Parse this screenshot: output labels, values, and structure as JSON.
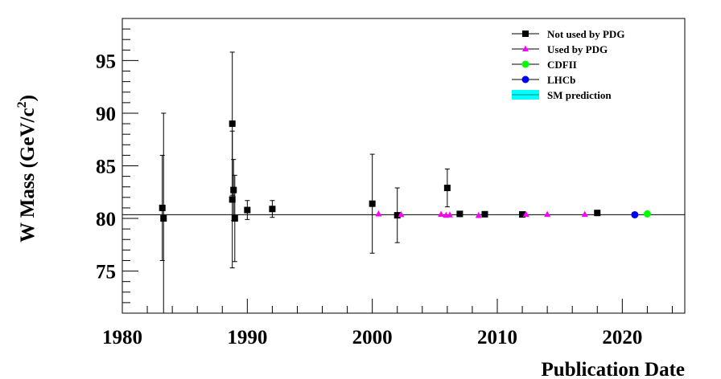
{
  "chart_data": {
    "type": "scatter",
    "title": "",
    "xlabel": "Publication Date",
    "ylabel": "W Mass (GeV/c",
    "ylabel_sup": "2",
    "ylabel_close": ")",
    "xlim": [
      1980,
      2025
    ],
    "ylim": [
      71,
      99
    ],
    "x_ticks": [
      1980,
      1990,
      2000,
      2010,
      2020
    ],
    "x_tick_labels": [
      "1980",
      "1990",
      "2000",
      "2010",
      "2020"
    ],
    "y_ticks": [
      75,
      80,
      85,
      90,
      95
    ],
    "y_tick_labels": [
      "75",
      "80",
      "85",
      "90",
      "95"
    ],
    "reference_line": {
      "name": "SM prediction",
      "y": 80.36
    },
    "legend_position": "top-right",
    "series": [
      {
        "name": "Not used by PDG",
        "marker": "square",
        "color": "#000000",
        "points": [
          {
            "x": 1983.2,
            "y": 81.0,
            "err": 5.0
          },
          {
            "x": 1983.3,
            "y": 80.0,
            "err": 10.0
          },
          {
            "x": 1988.8,
            "y": 89.0,
            "err": 6.8
          },
          {
            "x": 1988.8,
            "y": 81.8,
            "err": 6.5
          },
          {
            "x": 1988.9,
            "y": 82.7,
            "err": 2.9
          },
          {
            "x": 1989.0,
            "y": 80.0,
            "err": 4.1
          },
          {
            "x": 1990.0,
            "y": 80.8,
            "err": 0.9
          },
          {
            "x": 1992.0,
            "y": 80.9,
            "err": 0.8
          },
          {
            "x": 2000.0,
            "y": 81.4,
            "err": 4.7
          },
          {
            "x": 2002.0,
            "y": 80.3,
            "err": 2.6
          },
          {
            "x": 2006.0,
            "y": 82.9,
            "err": 1.8
          },
          {
            "x": 2007.0,
            "y": 80.43,
            "err": 0.1
          },
          {
            "x": 2009.0,
            "y": 80.4,
            "err": 0.1
          },
          {
            "x": 2012.0,
            "y": 80.38,
            "err": 0.05
          },
          {
            "x": 2018.0,
            "y": 80.52,
            "err": 0.05
          }
        ]
      },
      {
        "name": "Used by PDG",
        "marker": "triangle",
        "color": "#ff00ff",
        "points": [
          {
            "x": 2000.5,
            "y": 80.42
          },
          {
            "x": 2002.3,
            "y": 80.36
          },
          {
            "x": 2005.5,
            "y": 80.38
          },
          {
            "x": 2005.9,
            "y": 80.3
          },
          {
            "x": 2006.2,
            "y": 80.33
          },
          {
            "x": 2008.5,
            "y": 80.28
          },
          {
            "x": 2012.3,
            "y": 80.37
          },
          {
            "x": 2014.0,
            "y": 80.37
          },
          {
            "x": 2017.0,
            "y": 80.37
          }
        ]
      },
      {
        "name": "CDFII",
        "marker": "circle",
        "color": "#00ff00",
        "points": [
          {
            "x": 2022.0,
            "y": 80.43
          }
        ]
      },
      {
        "name": "LHCb",
        "marker": "circle",
        "color": "#0000ff",
        "points": [
          {
            "x": 2021.0,
            "y": 80.35
          }
        ]
      }
    ],
    "legend": [
      {
        "label": "Not used by PDG",
        "kind": "square",
        "color": "#000000"
      },
      {
        "label": "Used by PDG",
        "kind": "triangle",
        "color": "#ff00ff"
      },
      {
        "label": "CDFII",
        "kind": "circle",
        "color": "#00ff00"
      },
      {
        "label": "LHCb",
        "kind": "circle",
        "color": "#0000ff"
      },
      {
        "label": "SM prediction",
        "kind": "band",
        "color": "#00ffff"
      }
    ]
  }
}
